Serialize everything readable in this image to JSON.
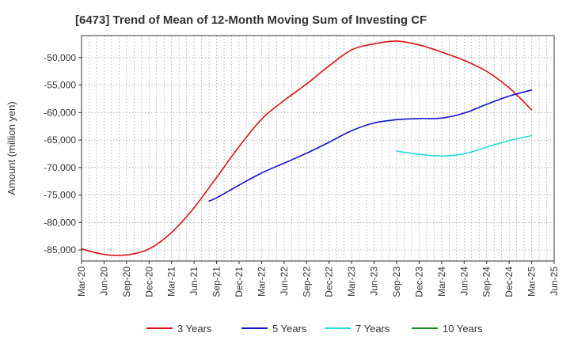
{
  "chart_data": {
    "type": "line",
    "title": "[6473]  Trend of Mean of 12-Month Moving Sum of Investing CF",
    "ylabel": "Amount (million yen)",
    "xlabel": "",
    "x_ticks": [
      "Mar-20",
      "Jun-20",
      "Sep-20",
      "Dec-20",
      "Mar-21",
      "Jun-21",
      "Sep-21",
      "Dec-21",
      "Mar-22",
      "Jun-22",
      "Sep-22",
      "Dec-22",
      "Mar-23",
      "Jun-23",
      "Sep-23",
      "Dec-23",
      "Mar-24",
      "Jun-24",
      "Sep-24",
      "Dec-24",
      "Mar-25",
      "Jun-25"
    ],
    "y_ticks": [
      -85000,
      -80000,
      -75000,
      -70000,
      -65000,
      -60000,
      -55000,
      -50000
    ],
    "y_tick_labels": [
      "-85,000",
      "-80,000",
      "-75,000",
      "-70,000",
      "-65,000",
      "-60,000",
      "-55,000",
      "-50,000"
    ],
    "ylim": [
      -87000,
      -46000
    ],
    "grid": true,
    "legend_position": "bottom",
    "series": [
      {
        "name": "3 Years",
        "color": "#dd1111",
        "x": [
          "Mar-20",
          "Jun-20",
          "Sep-20",
          "Dec-20",
          "Mar-21",
          "Jun-21",
          "Sep-21",
          "Dec-21",
          "Mar-22",
          "Jun-22",
          "Sep-22",
          "Dec-22",
          "Mar-23",
          "Jun-23",
          "Sep-23",
          "Dec-23",
          "Mar-24",
          "Jun-24",
          "Sep-24",
          "Dec-24",
          "Mar-25"
        ],
        "values": [
          -84800,
          -85800,
          -85900,
          -84800,
          -81800,
          -77300,
          -71800,
          -66200,
          -61200,
          -57800,
          -54800,
          -51500,
          -48600,
          -47500,
          -47000,
          -47700,
          -49000,
          -50500,
          -52500,
          -55500,
          -59500
        ]
      },
      {
        "name": "5 Years",
        "color": "#1111cc",
        "x": [
          "Aug-21",
          "Sep-21",
          "Dec-21",
          "Mar-22",
          "Jun-22",
          "Sep-22",
          "Dec-22",
          "Mar-23",
          "Jun-23",
          "Sep-23",
          "Dec-23",
          "Mar-24",
          "Jun-24",
          "Sep-24",
          "Dec-24",
          "Mar-25"
        ],
        "values": [
          -76100,
          -75500,
          -73200,
          -71000,
          -69200,
          -67400,
          -65400,
          -63300,
          -61900,
          -61300,
          -61100,
          -61000,
          -60100,
          -58500,
          -57000,
          -55900
        ]
      },
      {
        "name": "7 Years",
        "color": "#22dddd",
        "x": [
          "Sep-23",
          "Dec-23",
          "Mar-24",
          "Jun-24",
          "Sep-24",
          "Dec-24",
          "Mar-25"
        ],
        "values": [
          -67000,
          -67600,
          -67900,
          -67500,
          -66300,
          -65100,
          -64200
        ]
      },
      {
        "name": "10 Years",
        "color": "#228822",
        "x": [],
        "values": []
      }
    ]
  }
}
